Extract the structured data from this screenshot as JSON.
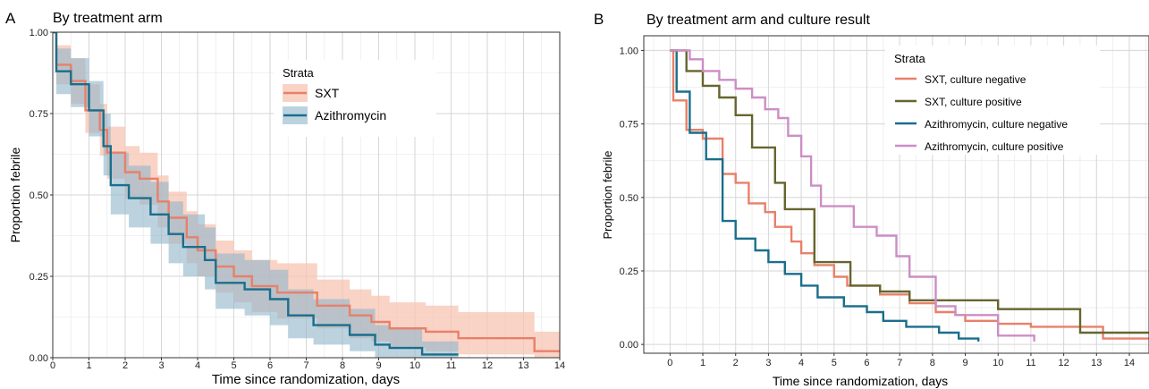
{
  "colors": {
    "sxt": "#e8806a",
    "sxt_band": "#f7c4b2",
    "azi": "#1a6e8c",
    "azi_band": "#8fb6c9",
    "sxt_pos": "#66652f",
    "azi_pos": "#cc8ec5",
    "grid_major": "#d6d6d6",
    "grid_minor": "#ececec",
    "frame": "#333333"
  },
  "chart_data": [
    {
      "type": "line",
      "panel_letter": "A",
      "title": "By treatment arm",
      "xlabel": "Time since randomization, days",
      "ylabel": "Proportion febrile",
      "xlim": [
        0,
        14
      ],
      "ylim": [
        0,
        1
      ],
      "x_ticks": [
        "0",
        "1",
        "2",
        "3",
        "4",
        "5",
        "6",
        "7",
        "8",
        "9",
        "10",
        "11",
        "12",
        "13",
        "14"
      ],
      "y_ticks": [
        "0.00",
        "0.25",
        "0.50",
        "0.75",
        "1.00"
      ],
      "x_minor_step": 0.5,
      "grid": true,
      "legend": {
        "title": "Strata",
        "position": "top-right",
        "entries": [
          "SXT",
          "Azithromycin"
        ]
      },
      "series": [
        {
          "name": "SXT",
          "color_key": "sxt",
          "band_color_key": "sxt_band",
          "band_opacity": 0.75,
          "x": [
            0,
            0.1,
            0.5,
            0.9,
            1.3,
            1.5,
            2.0,
            2.4,
            2.9,
            3.2,
            3.7,
            4.0,
            4.5,
            5.0,
            5.5,
            6.2,
            7.3,
            8.2,
            8.8,
            9.3,
            10.3,
            11.2,
            13.3,
            14.0
          ],
          "y": [
            1.0,
            0.9,
            0.85,
            0.76,
            0.7,
            0.63,
            0.57,
            0.55,
            0.48,
            0.43,
            0.37,
            0.33,
            0.28,
            0.25,
            0.22,
            0.2,
            0.16,
            0.13,
            0.11,
            0.09,
            0.08,
            0.06,
            0.02,
            0.02
          ],
          "lower": [
            1.0,
            0.84,
            0.78,
            0.69,
            0.62,
            0.55,
            0.49,
            0.47,
            0.4,
            0.35,
            0.29,
            0.25,
            0.2,
            0.17,
            0.14,
            0.12,
            0.09,
            0.06,
            0.05,
            0.03,
            0.02,
            0.01,
            0.0,
            0.0
          ],
          "upper": [
            1.0,
            0.96,
            0.92,
            0.84,
            0.78,
            0.71,
            0.65,
            0.63,
            0.56,
            0.51,
            0.45,
            0.41,
            0.36,
            0.33,
            0.3,
            0.29,
            0.24,
            0.21,
            0.19,
            0.17,
            0.16,
            0.14,
            0.08,
            0.08
          ]
        },
        {
          "name": "Azithromycin",
          "color_key": "azi",
          "band_color_key": "azi_band",
          "band_opacity": 0.6,
          "x": [
            0,
            0.1,
            0.5,
            1.0,
            1.4,
            1.6,
            2.1,
            2.7,
            3.2,
            3.6,
            4.2,
            4.5,
            5.3,
            6.0,
            6.5,
            7.2,
            8.2,
            8.9,
            9.3,
            10.2,
            11.2
          ],
          "y": [
            1.0,
            0.88,
            0.84,
            0.76,
            0.65,
            0.53,
            0.49,
            0.44,
            0.38,
            0.34,
            0.3,
            0.23,
            0.21,
            0.18,
            0.13,
            0.1,
            0.07,
            0.04,
            0.03,
            0.01,
            0.01
          ],
          "lower": [
            1.0,
            0.81,
            0.77,
            0.68,
            0.56,
            0.44,
            0.4,
            0.35,
            0.29,
            0.25,
            0.21,
            0.15,
            0.13,
            0.1,
            0.06,
            0.04,
            0.02,
            0.0,
            0.0,
            0.0,
            0.0
          ],
          "upper": [
            1.0,
            0.95,
            0.92,
            0.85,
            0.75,
            0.63,
            0.59,
            0.54,
            0.48,
            0.44,
            0.4,
            0.32,
            0.3,
            0.27,
            0.21,
            0.18,
            0.15,
            0.1,
            0.09,
            0.05,
            0.05
          ]
        }
      ]
    },
    {
      "type": "line",
      "panel_letter": "B",
      "title": "By treatment arm and culture result",
      "xlabel": "Time since randomization, days",
      "ylabel": "Proportion febrile",
      "xlim": [
        -0.8,
        14.6
      ],
      "ylim": [
        -0.03,
        1.05
      ],
      "x_ticks": [
        "0",
        "1",
        "2",
        "3",
        "4",
        "5",
        "6",
        "7",
        "8",
        "9",
        "10",
        "11",
        "12",
        "13",
        "14"
      ],
      "y_ticks": [
        "0.00",
        "0.25",
        "0.50",
        "0.75",
        "1.00"
      ],
      "x_minor_step": 0.5,
      "grid": true,
      "legend": {
        "title": "Strata",
        "position": "top-right",
        "entries": [
          "SXT, culture negative",
          "SXT, culture positive",
          "Azithromycin, culture negative",
          "Azithromycin, culture positive"
        ]
      },
      "series": [
        {
          "name": "SXT, culture negative",
          "color_key": "sxt",
          "x": [
            0,
            0.1,
            0.5,
            1.0,
            1.6,
            2.0,
            2.4,
            2.9,
            3.2,
            3.7,
            4.0,
            4.4,
            5.0,
            5.4,
            6.4,
            7.3,
            8.1,
            8.7,
            9.0,
            10.0,
            11.0,
            13.2,
            14.6
          ],
          "y": [
            1.0,
            0.83,
            0.73,
            0.7,
            0.58,
            0.55,
            0.48,
            0.45,
            0.4,
            0.35,
            0.31,
            0.27,
            0.23,
            0.2,
            0.17,
            0.14,
            0.11,
            0.1,
            0.08,
            0.07,
            0.06,
            0.02,
            0.02
          ]
        },
        {
          "name": "SXT, culture positive",
          "color_key": "sxt_pos",
          "x": [
            0,
            0.5,
            1.0,
            1.5,
            2.0,
            2.5,
            3.2,
            3.5,
            4.4,
            5.5,
            6.4,
            7.3,
            8.0,
            10.0,
            12.5,
            14.6
          ],
          "y": [
            1.0,
            0.93,
            0.88,
            0.84,
            0.78,
            0.67,
            0.55,
            0.46,
            0.28,
            0.2,
            0.18,
            0.15,
            0.15,
            0.12,
            0.04,
            0.04
          ]
        },
        {
          "name": "Azithromycin, culture negative",
          "color_key": "azi",
          "x": [
            0,
            0.2,
            0.6,
            1.1,
            1.6,
            2.0,
            2.6,
            3.0,
            3.5,
            4.0,
            4.5,
            5.3,
            6.0,
            6.5,
            7.2,
            8.2,
            8.8,
            9.4
          ],
          "y": [
            1.0,
            0.86,
            0.72,
            0.63,
            0.42,
            0.36,
            0.32,
            0.28,
            0.24,
            0.2,
            0.16,
            0.13,
            0.11,
            0.08,
            0.06,
            0.04,
            0.02,
            0.01
          ]
        },
        {
          "name": "Azithromycin, culture positive",
          "color_key": "azi_pos",
          "x": [
            0,
            0.6,
            1.0,
            1.5,
            2.0,
            2.5,
            2.9,
            3.3,
            3.6,
            4.0,
            4.3,
            4.6,
            5.6,
            6.3,
            6.9,
            7.3,
            8.1,
            8.7,
            10.0,
            11.1
          ],
          "y": [
            1.0,
            0.97,
            0.93,
            0.9,
            0.87,
            0.84,
            0.8,
            0.77,
            0.71,
            0.64,
            0.54,
            0.47,
            0.4,
            0.37,
            0.3,
            0.23,
            0.13,
            0.1,
            0.03,
            0.01
          ]
        }
      ]
    }
  ]
}
